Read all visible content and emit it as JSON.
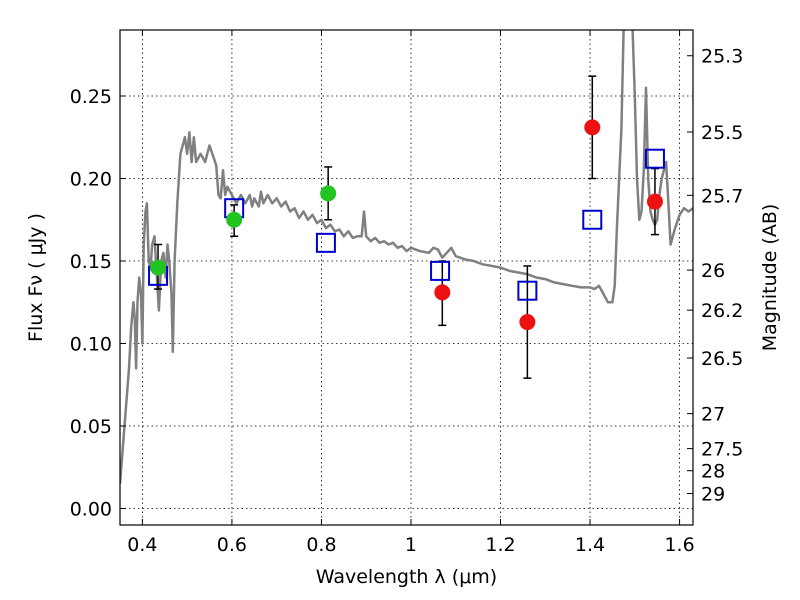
{
  "chart_data": {
    "type": "scatter",
    "xlabel": "Wavelength  λ (μm)",
    "ylabel": "Flux  Fν  ( μJy )",
    "y2label": "Magnitude (AB)",
    "xlim": [
      0.35,
      1.63
    ],
    "ylim": [
      -0.01,
      0.29
    ],
    "grid": true,
    "x_ticks": [
      0.4,
      0.6,
      0.8,
      1.0,
      1.2,
      1.4,
      1.6
    ],
    "x_tick_labels": [
      "0.4",
      "0.6",
      "0.8",
      "1",
      "1.2",
      "1.4",
      "1.6"
    ],
    "y_ticks": [
      0.0,
      0.05,
      0.1,
      0.15,
      0.2,
      0.25
    ],
    "y_tick_labels": [
      "0.00",
      "0.05",
      "0.10",
      "0.15",
      "0.20",
      "0.25"
    ],
    "y2_ticks": [
      {
        "label": "25.3",
        "flux": 0.2744
      },
      {
        "label": "25.5",
        "flux": 0.2282
      },
      {
        "label": "25.7",
        "flux": 0.1898
      },
      {
        "label": "26",
        "flux": 0.1445
      },
      {
        "label": "26.2",
        "flux": 0.1202
      },
      {
        "label": "26.5",
        "flux": 0.0912
      },
      {
        "label": "27",
        "flux": 0.0575
      },
      {
        "label": "27.5",
        "flux": 0.0363
      },
      {
        "label": "28",
        "flux": 0.0229
      },
      {
        "label": "29",
        "flux": 0.0091
      }
    ],
    "colors": {
      "template": "#808080",
      "model": "#0000cc",
      "green": "#22c422",
      "red": "#ee1111",
      "errorbar": "#000000"
    },
    "series": [
      {
        "kind": "line",
        "points": [
          [
            0.35,
            0.015
          ],
          [
            0.36,
            0.05
          ],
          [
            0.37,
            0.085
          ],
          [
            0.375,
            0.11
          ],
          [
            0.38,
            0.125
          ],
          [
            0.383,
            0.115
          ],
          [
            0.386,
            0.085
          ],
          [
            0.389,
            0.125
          ],
          [
            0.393,
            0.14
          ],
          [
            0.397,
            0.13
          ],
          [
            0.4,
            0.1
          ],
          [
            0.403,
            0.16
          ],
          [
            0.407,
            0.18
          ],
          [
            0.41,
            0.185
          ],
          [
            0.414,
            0.15
          ],
          [
            0.418,
            0.145
          ],
          [
            0.422,
            0.16
          ],
          [
            0.427,
            0.165
          ],
          [
            0.432,
            0.142
          ],
          [
            0.437,
            0.12
          ],
          [
            0.442,
            0.15
          ],
          [
            0.447,
            0.155
          ],
          [
            0.452,
            0.14
          ],
          [
            0.456,
            0.16
          ],
          [
            0.46,
            0.15
          ],
          [
            0.465,
            0.13
          ],
          [
            0.468,
            0.095
          ],
          [
            0.472,
            0.15
          ],
          [
            0.478,
            0.185
          ],
          [
            0.485,
            0.215
          ],
          [
            0.49,
            0.22
          ],
          [
            0.495,
            0.225
          ],
          [
            0.5,
            0.215
          ],
          [
            0.505,
            0.228
          ],
          [
            0.51,
            0.21
          ],
          [
            0.515,
            0.225
          ],
          [
            0.52,
            0.21
          ],
          [
            0.53,
            0.215
          ],
          [
            0.54,
            0.21
          ],
          [
            0.55,
            0.22
          ],
          [
            0.56,
            0.212
          ],
          [
            0.565,
            0.208
          ],
          [
            0.57,
            0.19
          ],
          [
            0.575,
            0.188
          ],
          [
            0.58,
            0.205
          ],
          [
            0.585,
            0.19
          ],
          [
            0.59,
            0.195
          ],
          [
            0.6,
            0.19
          ],
          [
            0.61,
            0.185
          ],
          [
            0.62,
            0.19
          ],
          [
            0.63,
            0.185
          ],
          [
            0.64,
            0.19
          ],
          [
            0.645,
            0.183
          ],
          [
            0.65,
            0.188
          ],
          [
            0.66,
            0.183
          ],
          [
            0.665,
            0.192
          ],
          [
            0.67,
            0.185
          ],
          [
            0.68,
            0.19
          ],
          [
            0.69,
            0.185
          ],
          [
            0.7,
            0.188
          ],
          [
            0.71,
            0.183
          ],
          [
            0.72,
            0.186
          ],
          [
            0.73,
            0.18
          ],
          [
            0.74,
            0.182
          ],
          [
            0.75,
            0.176
          ],
          [
            0.76,
            0.18
          ],
          [
            0.77,
            0.175
          ],
          [
            0.78,
            0.178
          ],
          [
            0.79,
            0.173
          ],
          [
            0.8,
            0.175
          ],
          [
            0.81,
            0.17
          ],
          [
            0.82,
            0.172
          ],
          [
            0.83,
            0.168
          ],
          [
            0.84,
            0.169
          ],
          [
            0.85,
            0.165
          ],
          [
            0.86,
            0.168
          ],
          [
            0.87,
            0.164
          ],
          [
            0.88,
            0.165
          ],
          [
            0.89,
            0.165
          ],
          [
            0.895,
            0.18
          ],
          [
            0.9,
            0.165
          ],
          [
            0.91,
            0.162
          ],
          [
            0.92,
            0.164
          ],
          [
            0.93,
            0.161
          ],
          [
            0.94,
            0.162
          ],
          [
            0.95,
            0.16
          ],
          [
            0.96,
            0.161
          ],
          [
            0.97,
            0.158
          ],
          [
            0.98,
            0.159
          ],
          [
            0.99,
            0.156
          ],
          [
            1.0,
            0.158
          ],
          [
            1.02,
            0.156
          ],
          [
            1.04,
            0.155
          ],
          [
            1.05,
            0.158
          ],
          [
            1.06,
            0.157
          ],
          [
            1.07,
            0.152
          ],
          [
            1.08,
            0.155
          ],
          [
            1.09,
            0.158
          ],
          [
            1.1,
            0.153
          ],
          [
            1.12,
            0.151
          ],
          [
            1.14,
            0.15
          ],
          [
            1.16,
            0.148
          ],
          [
            1.18,
            0.147
          ],
          [
            1.2,
            0.146
          ],
          [
            1.22,
            0.144
          ],
          [
            1.24,
            0.143
          ],
          [
            1.26,
            0.142
          ],
          [
            1.28,
            0.14
          ],
          [
            1.3,
            0.139
          ],
          [
            1.32,
            0.137
          ],
          [
            1.34,
            0.136
          ],
          [
            1.36,
            0.135
          ],
          [
            1.38,
            0.134
          ],
          [
            1.4,
            0.134
          ],
          [
            1.41,
            0.133
          ],
          [
            1.42,
            0.135
          ],
          [
            1.43,
            0.13
          ],
          [
            1.44,
            0.125
          ],
          [
            1.45,
            0.125
          ],
          [
            1.455,
            0.135
          ],
          [
            1.46,
            0.17
          ],
          [
            1.47,
            0.23
          ],
          [
            1.475,
            0.29
          ]
        ]
      },
      {
        "kind": "line",
        "points": [
          [
            1.495,
            0.29
          ],
          [
            1.5,
            0.25
          ],
          [
            1.505,
            0.2
          ],
          [
            1.51,
            0.175
          ],
          [
            1.515,
            0.18
          ],
          [
            1.52,
            0.205
          ],
          [
            1.525,
            0.255
          ],
          [
            1.53,
            0.2
          ],
          [
            1.535,
            0.18
          ],
          [
            1.54,
            0.175
          ],
          [
            1.545,
            0.172
          ],
          [
            1.55,
            0.175
          ],
          [
            1.555,
            0.19
          ],
          [
            1.56,
            0.2
          ],
          [
            1.57,
            0.21
          ],
          [
            1.575,
            0.185
          ],
          [
            1.58,
            0.16
          ],
          [
            1.59,
            0.17
          ],
          [
            1.6,
            0.178
          ],
          [
            1.61,
            0.182
          ],
          [
            1.62,
            0.18
          ],
          [
            1.63,
            0.182
          ]
        ]
      },
      {
        "kind": "open-square",
        "points": [
          [
            0.435,
            0.141
          ],
          [
            0.605,
            0.182
          ],
          [
            0.81,
            0.161
          ],
          [
            1.065,
            0.144
          ],
          [
            1.26,
            0.132
          ],
          [
            1.405,
            0.175
          ],
          [
            1.545,
            0.212
          ]
        ]
      },
      {
        "kind": "filled-circle",
        "color": "green",
        "points": [
          {
            "x": 0.435,
            "y": 0.146,
            "lo": 0.133,
            "hi": 0.16
          },
          {
            "x": 0.605,
            "y": 0.175,
            "lo": 0.165,
            "hi": 0.184
          },
          {
            "x": 0.815,
            "y": 0.191,
            "lo": 0.175,
            "hi": 0.207
          }
        ]
      },
      {
        "kind": "filled-circle",
        "color": "red",
        "points": [
          {
            "x": 1.07,
            "y": 0.131,
            "lo": 0.111,
            "hi": 0.15
          },
          {
            "x": 1.26,
            "y": 0.113,
            "lo": 0.079,
            "hi": 0.147
          },
          {
            "x": 1.405,
            "y": 0.231,
            "lo": 0.2,
            "hi": 0.262
          },
          {
            "x": 1.545,
            "y": 0.186,
            "lo": 0.166,
            "hi": 0.206
          }
        ]
      }
    ]
  }
}
